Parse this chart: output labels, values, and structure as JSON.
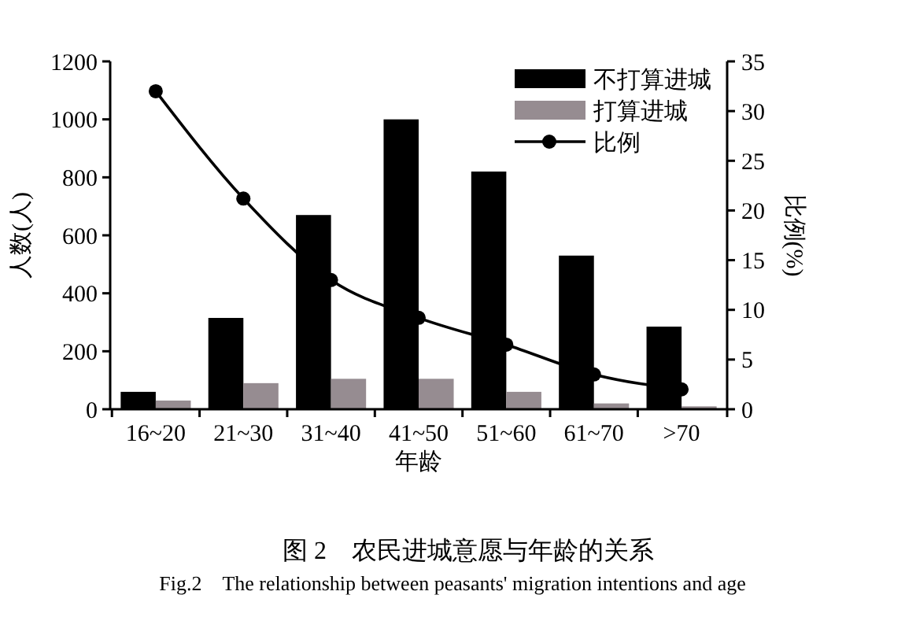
{
  "chart_data": {
    "type": "bar",
    "title": "图 2　农民进城意愿与年龄的关系",
    "subtitle": "Fig.2　The relationship between peasants' migration intentions and age",
    "xlabel": "年龄",
    "ylabel": "人数(人)",
    "y2label": "比例(%)",
    "categories": [
      "16~20",
      "21~30",
      "31~40",
      "41~50",
      "51~60",
      "61~70",
      ">70"
    ],
    "series": [
      {
        "name": "不打算进城",
        "color": "#000000",
        "values": [
          60,
          315,
          670,
          1000,
          820,
          530,
          285
        ]
      },
      {
        "name": "打算进城",
        "color": "#968c91",
        "values": [
          30,
          90,
          105,
          105,
          60,
          20,
          10
        ]
      },
      {
        "name": "比例",
        "type": "line",
        "axis": "y2",
        "color": "#000000",
        "marker": "circle",
        "values": [
          32,
          21.2,
          13,
          9.2,
          6.5,
          3.5,
          2
        ]
      }
    ],
    "ylim": [
      0,
      1200
    ],
    "yticks": [
      0,
      200,
      400,
      600,
      800,
      1000,
      1200
    ],
    "y2lim": [
      0,
      35
    ],
    "y2ticks": [
      0,
      5,
      10,
      15,
      20,
      25,
      30,
      35
    ],
    "legend": "top right",
    "grid": false
  }
}
